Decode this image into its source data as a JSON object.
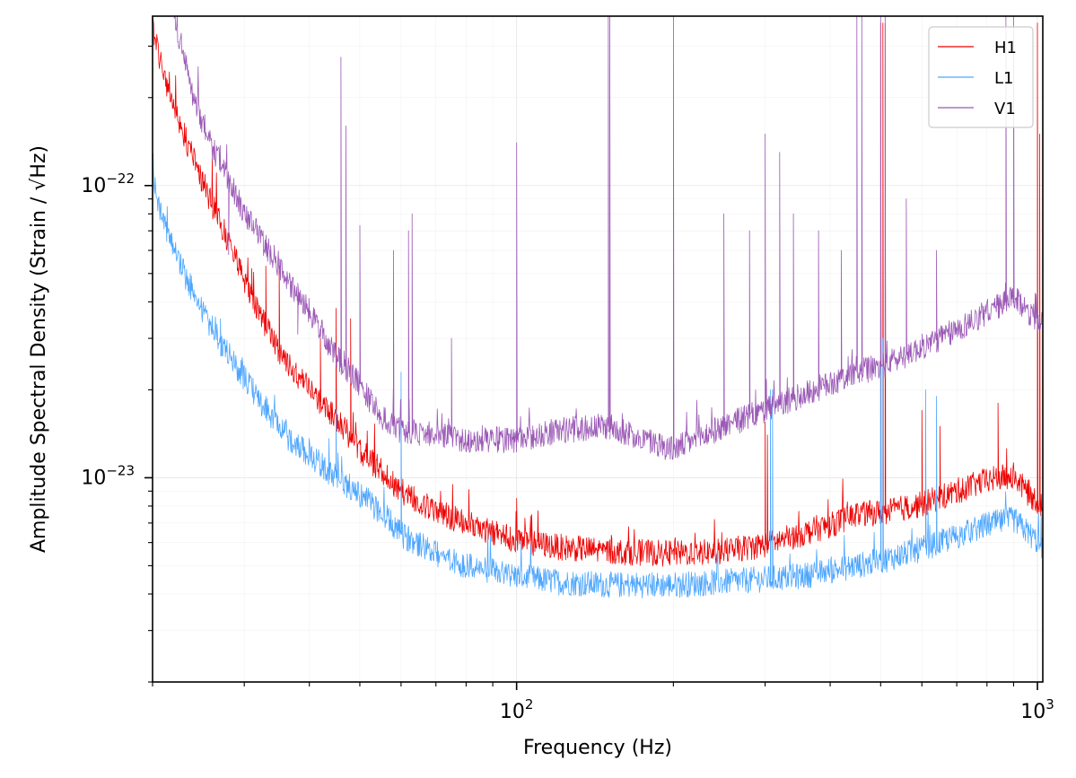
{
  "chart_data": {
    "type": "line",
    "title": "",
    "xlabel": "Frequency (Hz)",
    "ylabel": "Amplitude Spectral Density (Strain / √Hz)",
    "xscale": "log",
    "yscale": "log",
    "xlim": [
      20,
      1024
    ],
    "ylim": [
      2e-24,
      3.8e-22
    ],
    "grid": "on (major and minor)",
    "legend": "top-right",
    "x_ticks": [
      {
        "value": 100,
        "label": "10",
        "exp": "2"
      },
      {
        "value": 1000,
        "label": "10",
        "exp": "3"
      }
    ],
    "y_ticks": [
      {
        "value": 1e-23,
        "label": "10",
        "exp": "−23"
      },
      {
        "value": 1e-22,
        "label": "10",
        "exp": "−22"
      }
    ],
    "series": [
      {
        "name": "H1",
        "color": "#ee0000",
        "baseline": [
          [
            20,
            3.5e-22
          ],
          [
            21,
            2.4e-22
          ],
          [
            23,
            1.5e-22
          ],
          [
            25,
            1e-22
          ],
          [
            27,
            7.5e-23
          ],
          [
            30,
            4.8e-23
          ],
          [
            33,
            3.3e-23
          ],
          [
            36,
            2.5e-23
          ],
          [
            40,
            2e-23
          ],
          [
            45,
            1.6e-23
          ],
          [
            50,
            1.25e-23
          ],
          [
            55,
            1.05e-23
          ],
          [
            60,
            9e-24
          ],
          [
            70,
            7.7e-24
          ],
          [
            80,
            7e-24
          ],
          [
            100,
            6.1e-24
          ],
          [
            120,
            5.8e-24
          ],
          [
            150,
            5.6e-24
          ],
          [
            200,
            5.5e-24
          ],
          [
            250,
            5.6e-24
          ],
          [
            300,
            5.9e-24
          ],
          [
            350,
            6.4e-24
          ],
          [
            400,
            6.9e-24
          ],
          [
            450,
            7.5e-24
          ],
          [
            500,
            7.6e-24
          ],
          [
            600,
            8.1e-24
          ],
          [
            700,
            9e-24
          ],
          [
            800,
            9.8e-24
          ],
          [
            900,
            1.02e-23
          ],
          [
            950,
            9e-24
          ],
          [
            1024,
            8e-24
          ]
        ],
        "lines": [
          [
            31,
            5.2e-23
          ],
          [
            33,
            5.3e-23
          ],
          [
            35,
            5.3e-23
          ],
          [
            42,
            3e-23
          ],
          [
            45,
            3.8e-23
          ],
          [
            48,
            3.5e-23
          ],
          [
            60,
            1.1e-23
          ],
          [
            100,
            8.5e-24
          ],
          [
            300,
            1.55e-23
          ],
          [
            303,
            1.4e-23
          ],
          [
            500,
            3.6e-22
          ],
          [
            505,
            3.6e-22
          ],
          [
            510,
            3.6e-22
          ],
          [
            600,
            1.7e-23
          ],
          [
            650,
            1.5e-23
          ],
          [
            840,
            1.8e-23
          ],
          [
            1000,
            3.6e-22
          ],
          [
            1010,
            1.5e-22
          ]
        ]
      },
      {
        "name": "L1",
        "color": "#4da6ff",
        "baseline": [
          [
            20,
            1.05e-22
          ],
          [
            21,
            7.5e-23
          ],
          [
            23,
            5e-23
          ],
          [
            25,
            3.7e-23
          ],
          [
            27,
            2.9e-23
          ],
          [
            30,
            2.2e-23
          ],
          [
            33,
            1.7e-23
          ],
          [
            36,
            1.4e-23
          ],
          [
            40,
            1.2e-23
          ],
          [
            45,
            1e-23
          ],
          [
            50,
            8.8e-24
          ],
          [
            55,
            7.6e-24
          ],
          [
            60,
            6.4e-24
          ],
          [
            70,
            5.5e-24
          ],
          [
            80,
            5e-24
          ],
          [
            100,
            4.6e-24
          ],
          [
            120,
            4.4e-24
          ],
          [
            150,
            4.3e-24
          ],
          [
            200,
            4.3e-24
          ],
          [
            250,
            4.4e-24
          ],
          [
            300,
            4.5e-24
          ],
          [
            350,
            4.6e-24
          ],
          [
            400,
            4.8e-24
          ],
          [
            450,
            5e-24
          ],
          [
            500,
            5.2e-24
          ],
          [
            600,
            5.7e-24
          ],
          [
            700,
            6.3e-24
          ],
          [
            800,
            6.9e-24
          ],
          [
            900,
            7.2e-24
          ],
          [
            950,
            6.6e-24
          ],
          [
            1024,
            5.8e-24
          ]
        ],
        "lines": [
          [
            27,
            3.5e-23
          ],
          [
            33,
            1.9e-23
          ],
          [
            45,
            1.7e-23
          ],
          [
            60,
            2.3e-23
          ],
          [
            307,
            2e-23
          ],
          [
            310,
            2e-23
          ],
          [
            500,
            3.5e-23
          ],
          [
            505,
            3e-23
          ],
          [
            610,
            2e-23
          ],
          [
            640,
            1.9e-23
          ]
        ]
      },
      {
        "name": "V1",
        "color": "#9b59b6",
        "baseline": [
          [
            22,
            3.8e-22
          ],
          [
            24,
            2e-22
          ],
          [
            26,
            1.35e-22
          ],
          [
            28,
            1.05e-22
          ],
          [
            30,
            8e-23
          ],
          [
            33,
            6.2e-23
          ],
          [
            36,
            4.8e-23
          ],
          [
            40,
            3.7e-23
          ],
          [
            45,
            2.6e-23
          ],
          [
            50,
            2.1e-23
          ],
          [
            55,
            1.6e-23
          ],
          [
            60,
            1.45e-23
          ],
          [
            70,
            1.4e-23
          ],
          [
            80,
            1.35e-23
          ],
          [
            100,
            1.35e-23
          ],
          [
            120,
            1.45e-23
          ],
          [
            150,
            1.5e-23
          ],
          [
            200,
            1.25e-23
          ],
          [
            250,
            1.5e-23
          ],
          [
            300,
            1.7e-23
          ],
          [
            350,
            1.9e-23
          ],
          [
            400,
            2.1e-23
          ],
          [
            450,
            2.3e-23
          ],
          [
            500,
            2.4e-23
          ],
          [
            600,
            2.8e-23
          ],
          [
            700,
            3.2e-23
          ],
          [
            800,
            3.7e-23
          ],
          [
            900,
            4.1e-23
          ],
          [
            950,
            3.8e-23
          ],
          [
            1024,
            3.3e-23
          ]
        ],
        "lines": [
          [
            28,
            5.8e-23
          ],
          [
            35,
            5e-23
          ],
          [
            38,
            3.1e-23
          ],
          [
            42,
            3e-23
          ],
          [
            46,
            2.75e-22
          ],
          [
            47,
            1.6e-22
          ],
          [
            50,
            7.3e-23
          ],
          [
            58,
            6e-23
          ],
          [
            62,
            7e-23
          ],
          [
            63,
            8e-23
          ],
          [
            75,
            3e-23
          ],
          [
            100,
            1.4e-22
          ],
          [
            150,
            3.8e-22
          ],
          [
            151,
            3.8e-22
          ],
          [
            200,
            3.8e-22
          ],
          [
            250,
            8e-23
          ],
          [
            280,
            7e-23
          ],
          [
            300,
            1.5e-22
          ],
          [
            320,
            1.3e-22
          ],
          [
            340,
            8e-23
          ],
          [
            380,
            7e-23
          ],
          [
            420,
            6e-23
          ],
          [
            450,
            3.8e-22
          ],
          [
            460,
            3.8e-22
          ],
          [
            500,
            3.8e-22
          ],
          [
            510,
            3.8e-22
          ],
          [
            560,
            9e-23
          ],
          [
            640,
            6e-23
          ],
          [
            870,
            3.8e-22
          ],
          [
            900,
            3.8e-22
          ]
        ]
      }
    ]
  }
}
